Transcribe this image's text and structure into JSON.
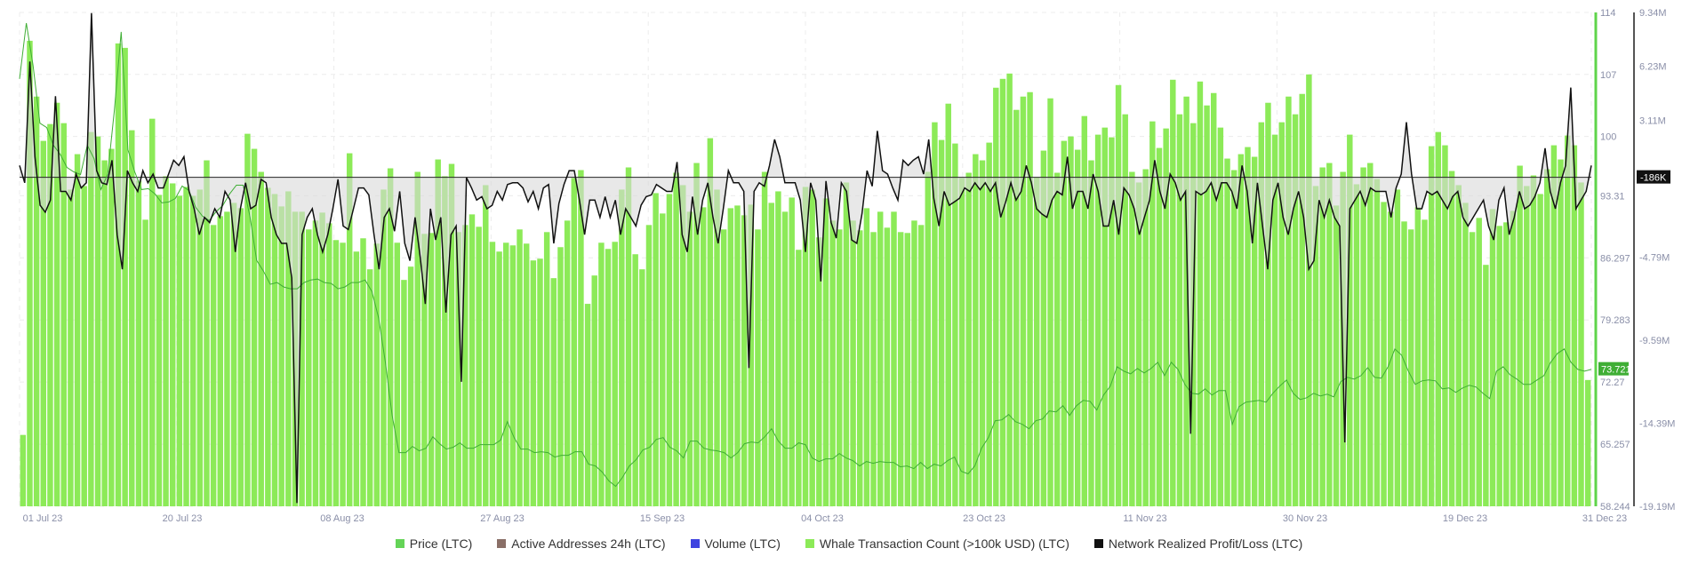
{
  "chart_data": {
    "type": "bar",
    "x_ticks": [
      "01 Jul 23",
      "20 Jul 23",
      "08 Aug 23",
      "27 Aug 23",
      "15 Sep 23",
      "04 Oct 23",
      "23 Oct 23",
      "11 Nov 23",
      "30 Nov 23",
      "19 Dec 23",
      "31 Dec 23"
    ],
    "y_left_ticks": [
      "114",
      "107",
      "100",
      "93.31",
      "86.297",
      "79.283",
      "72.27",
      "65.257",
      "58.244"
    ],
    "y_right_ticks": [
      "9.34M",
      "6.23M",
      "3.11M",
      "-186K",
      "-4.79M",
      "-9.59M",
      "-14.39M",
      "-19.19M"
    ],
    "ylim_left": [
      58.244,
      114
    ],
    "ylim_right": [
      -19.19,
      9.34
    ],
    "current_price_label": "73.721",
    "current_profit_label": "-186K",
    "colors": {
      "price": "#64d457",
      "whale": "#8cea58",
      "active_addresses": "#8a6f67",
      "volume": "#3f44e0",
      "profit": "#111111",
      "profit_fill": "#d9d9d9"
    },
    "series": [
      {
        "name": "Price (LTC)",
        "unit": "LTC",
        "values": [
          106.5,
          112.8,
          108.0,
          101.5,
          101.0,
          99.0,
          98.0,
          96.5,
          96.0,
          95.7,
          99.0,
          97.5,
          94.0,
          95.7,
          103.0,
          111.8,
          98.5,
          96.0,
          94.0,
          94.1,
          93.5,
          92.5,
          92.6,
          93.0,
          94.4,
          93.9,
          92.0,
          91.0,
          90.5,
          91.5,
          92.2,
          93.5,
          94.5,
          94.5,
          91.0,
          86.0,
          84.8,
          83.3,
          83.5,
          83.0,
          82.8,
          82.8,
          83.5,
          83.8,
          83.9,
          83.5,
          83.4,
          82.8,
          83.0,
          83.5,
          83.5,
          83.8,
          82.5,
          79.5,
          74.5,
          68.5,
          64.3,
          64.3,
          65.0,
          64.5,
          64.8,
          66.1,
          65.3,
          64.7,
          64.9,
          65.4,
          64.8,
          64.8,
          65.2,
          65.2,
          65.2,
          65.7,
          67.8,
          66.0,
          64.7,
          64.7,
          64.3,
          64.4,
          64.3,
          63.8,
          64.0,
          64.0,
          64.4,
          64.4,
          63.0,
          62.8,
          62.1,
          61.1,
          60.5,
          61.5,
          62.8,
          63.5,
          64.6,
          64.9,
          65.8,
          66.0,
          64.9,
          64.5,
          63.7,
          65.6,
          65.6,
          64.8,
          64.6,
          64.5,
          64.3,
          63.7,
          64.3,
          65.3,
          65.5,
          65.4,
          66.1,
          67.0,
          65.6,
          64.8,
          64.8,
          65.4,
          65.2,
          63.7,
          63.3,
          63.6,
          63.6,
          64.2,
          63.7,
          63.4,
          62.8,
          63.3,
          63.1,
          63.3,
          63.2,
          63.2,
          62.7,
          62.8,
          62.5,
          63.2,
          62.5,
          63.0,
          62.8,
          63.4,
          63.8,
          62.2,
          61.9,
          62.8,
          64.8,
          66.0,
          67.9,
          68.0,
          68.6,
          67.8,
          67.5,
          67.0,
          67.9,
          68.1,
          69.0,
          68.9,
          69.6,
          68.5,
          69.6,
          70.2,
          70.1,
          69.1,
          70.8,
          71.8,
          74.0,
          73.5,
          73.2,
          73.8,
          73.3,
          73.8,
          74.5,
          73.0,
          74.5,
          73.7,
          72.0,
          71.0,
          70.9,
          71.5,
          70.8,
          71.3,
          71.3,
          67.5,
          69.5,
          70.0,
          70.1,
          70.2,
          70.0,
          71.0,
          71.8,
          72.5,
          71.0,
          70.3,
          70.5,
          71.0,
          70.7,
          70.9,
          70.6,
          72.3,
          72.8,
          72.6,
          73.0,
          73.9,
          72.8,
          72.7,
          74.0,
          76.0,
          75.3,
          73.5,
          72.0,
          72.4,
          72.5,
          72.4,
          71.5,
          71.6,
          71.1,
          71.6,
          71.9,
          71.7,
          71.0,
          70.4,
          73.5,
          74.0,
          73.1,
          72.6,
          72.0,
          72.0,
          72.5,
          73.0,
          74.5,
          75.5,
          76.0,
          74.5,
          73.7,
          73.5,
          73.7
        ]
      },
      {
        "name": "Whale Transaction Count (>100k USD) (LTC)",
        "unit": "count",
        "values": [
          66.3,
          110.8,
          104.5,
          99.5,
          101.4,
          103.8,
          101.5,
          94.0,
          98.0,
          94.4,
          100.5,
          100.0,
          97.3,
          98.6,
          110.5,
          110.0,
          100.7,
          95.0,
          90.6,
          102.0,
          93.4,
          95.5,
          94.7,
          93.3,
          94.3,
          93.3,
          94.0,
          97.3,
          90.0,
          91.0,
          91.5,
          92.5,
          91.9,
          100.3,
          98.6,
          96.0,
          94.2,
          93.5,
          92.1,
          93.8,
          91.5,
          91.5,
          89.5,
          90.5,
          91.4,
          90.2,
          88.3,
          88.0,
          98.1,
          87.0,
          88.5,
          85.0,
          87.9,
          94.0,
          96.4,
          88.0,
          83.8,
          85.3,
          96.0,
          89.0,
          89.1,
          97.4,
          95.5,
          96.9,
          89.2,
          90.0,
          91.2,
          89.8,
          94.5,
          88.1,
          87.0,
          88.0,
          87.7,
          89.5,
          87.9,
          86.0,
          86.2,
          89.2,
          84.0,
          87.5,
          90.5,
          95.3,
          96.2,
          81.1,
          84.3,
          88.0,
          87.3,
          88.1,
          94.0,
          96.5,
          86.7,
          85.0,
          90.0,
          93.6,
          91.3,
          93.5,
          95.9,
          94.5,
          91.5,
          97.0,
          92.0,
          99.8,
          94.0,
          89.5,
          91.9,
          92.2,
          91.1,
          92.3,
          89.5,
          96.0,
          92.5,
          93.8,
          91.5,
          93.1,
          87.2,
          94.3,
          94.0,
          88.6,
          93.0,
          90.5,
          89.5,
          94.8,
          90.5,
          89.4,
          91.9,
          89.2,
          91.5,
          89.7,
          91.5,
          89.2,
          89.1,
          90.5,
          90.0,
          96.0,
          101.6,
          99.6,
          103.7,
          99.2,
          95.3,
          95.9,
          98.0,
          97.3,
          99.3,
          105.5,
          106.5,
          107.1,
          103.0,
          104.5,
          105.0,
          95.4,
          98.4,
          104.3,
          95.9,
          99.5,
          100.0,
          98.5,
          102.3,
          97.3,
          100.2,
          101.0,
          99.9,
          105.8,
          102.5,
          96.0,
          94.8,
          96.3,
          101.7,
          98.7,
          100.9,
          106.4,
          102.5,
          104.5,
          101.5,
          106.2,
          103.5,
          104.9,
          101.0,
          97.5,
          96.2,
          98.0,
          98.8,
          97.7,
          101.6,
          103.8,
          100.2,
          101.6,
          104.5,
          102.5,
          104.8,
          107.0,
          94.4,
          96.5,
          97.0,
          92.2,
          96.0,
          100.2,
          94.6,
          96.5,
          97.0,
          95.2,
          92.6,
          91.5,
          94.0,
          90.4,
          89.5,
          92.0,
          90.6,
          98.9,
          100.5,
          99.0,
          96.1,
          94.5,
          92.5,
          89.2,
          90.8,
          85.5,
          91.8,
          89.9,
          90.3,
          91.6,
          96.7,
          94.4,
          95.6,
          93.5,
          96.3,
          99.0,
          97.4,
          100.1,
          99.0,
          94.8,
          72.5
        ]
      },
      {
        "name": "Network Realized Profit/Loss (LTC)",
        "unit": "LTC",
        "values": [
          0.5,
          -0.5,
          6.5,
          1.0,
          -1.8,
          -2.2,
          -1.5,
          4.5,
          -1.0,
          -1.0,
          -1.5,
          0.0,
          -0.8,
          -0.5,
          9.3,
          0.2,
          -0.5,
          -0.6,
          0.8,
          -3.5,
          -5.5,
          0.2,
          -0.5,
          -1.0,
          0.2,
          -0.5,
          0.0,
          -0.8,
          -0.8,
          0.0,
          0.8,
          0.5,
          1.0,
          -1.0,
          -2.0,
          -3.5,
          -2.5,
          -2.8,
          -2.0,
          -2.5,
          -1.0,
          -1.5,
          -4.5,
          -2.0,
          -0.5,
          -2.0,
          -1.8,
          -0.3,
          -0.5,
          -2.5,
          -3.5,
          -4.0,
          -4.0,
          -6.0,
          -19.0,
          -3.5,
          -2.5,
          -2.0,
          -3.5,
          -4.5,
          -3.5,
          -2.0,
          -0.3,
          -3.0,
          -3.2,
          -2.0,
          -0.8,
          -0.8,
          -1.2,
          -3.5,
          -5.5,
          -2.5,
          -2.0,
          -3.3,
          -1.0,
          -4.0,
          -5.0,
          -2.5,
          -4.8,
          -7.5,
          -2.0,
          -3.8,
          -2.5,
          -8.0,
          -3.5,
          -3.0,
          -12.0,
          -0.2,
          -0.8,
          -1.5,
          -1.3,
          -2.0,
          -1.8,
          -1.0,
          -1.5,
          -0.6,
          -0.5,
          -0.5,
          -0.8,
          -1.6,
          -1.0,
          -2.0,
          -0.8,
          -0.6,
          -4.0,
          -1.7,
          -0.6,
          0.2,
          0.2,
          -1.5,
          -3.5,
          -1.5,
          -1.5,
          -2.5,
          -1.3,
          -2.5,
          -1.5,
          -3.5,
          -2.0,
          -2.5,
          -3.0,
          -1.8,
          -1.3,
          -1.2,
          -0.6,
          -0.8,
          -1.0,
          -1.0,
          0.7,
          -3.5,
          -4.5,
          -1.3,
          -3.5,
          -1.5,
          -0.5,
          -2.5,
          -4.0,
          -2.0,
          0.2,
          -0.5,
          -0.5,
          -1.0,
          -11.2,
          -1.0,
          -0.5,
          -0.7,
          0.5,
          2.0,
          1.0,
          -0.5,
          -0.5,
          -0.5,
          -1.5,
          -4.5,
          -0.5,
          -1.5,
          -6.2,
          -0.4,
          -2.8,
          -3.7,
          -0.5,
          -1.0,
          -3.8,
          -4.0,
          -2.3,
          0.2,
          -0.7,
          2.5,
          0.2,
          0.0,
          -0.8,
          -1.5,
          0.8,
          0.5,
          0.8,
          1.0,
          0.0,
          2.0,
          -1.4,
          -3.0,
          -1.0,
          -1.8,
          -1.6,
          -1.4,
          -0.8,
          -1.0,
          -0.5,
          -0.9,
          -0.5,
          -1.0,
          -0.5,
          -2.5,
          -1.6,
          -0.5,
          -1.5,
          -1.0,
          0.5,
          -0.5,
          -2.0,
          -2.3,
          -2.5,
          -1.5,
          -1.0,
          -1.2,
          1.0,
          -2.0,
          -1.0,
          -1.0,
          -2.0,
          0.0,
          -1.0,
          -3.0,
          -3.0,
          -1.5,
          -3.5,
          -0.8,
          -1.2,
          -2.0,
          -3.5,
          -2.5,
          -1.5,
          0.8,
          -1.0,
          -2.0,
          0.0,
          -0.5,
          -1.5,
          -1.0,
          -15.0,
          -1.0,
          -1.2,
          -1.0,
          -0.5,
          -1.5,
          -0.5,
          -0.5,
          -1.0,
          -2.0,
          0.5,
          -1.0,
          -4.0,
          -0.5,
          -3.0,
          -5.5,
          -1.5,
          -0.5,
          -2.5,
          -3.5,
          -2.0,
          -1.0,
          -2.5,
          -5.5,
          -5.0,
          -1.5,
          -2.5,
          -1.5,
          -2.5,
          -3.0,
          -15.5,
          -2.0,
          -1.5,
          -1.0,
          -1.8,
          -0.8,
          -1.0,
          -1.0,
          -1.0,
          -2.5,
          -0.8,
          0.0,
          3.0,
          0.0,
          -2.0,
          -2.0,
          -1.0,
          -1.2,
          -1.0,
          -1.5,
          -2.0,
          -1.3,
          -1.0,
          -2.5,
          -3.0,
          -2.5,
          -2.0,
          -1.5,
          -3.0,
          -3.8,
          -1.5,
          -0.8,
          -3.5,
          -2.5,
          -1.0,
          -2.0,
          -1.8,
          -1.3,
          -0.5,
          1.5,
          -1.0,
          -2.0,
          -0.5,
          0.5,
          5.0,
          -2.0,
          -1.5,
          -1.0,
          0.5
        ]
      }
    ],
    "legend": [
      {
        "label": "Price (LTC)",
        "color": "#64d457"
      },
      {
        "label": "Active Addresses 24h (LTC)",
        "color": "#8a6f67"
      },
      {
        "label": "Volume (LTC)",
        "color": "#3f44e0"
      },
      {
        "label": "Whale Transaction Count (>100k USD) (LTC)",
        "color": "#8cea58"
      },
      {
        "label": "Network Realized Profit/Loss (LTC)",
        "color": "#111111"
      }
    ]
  }
}
